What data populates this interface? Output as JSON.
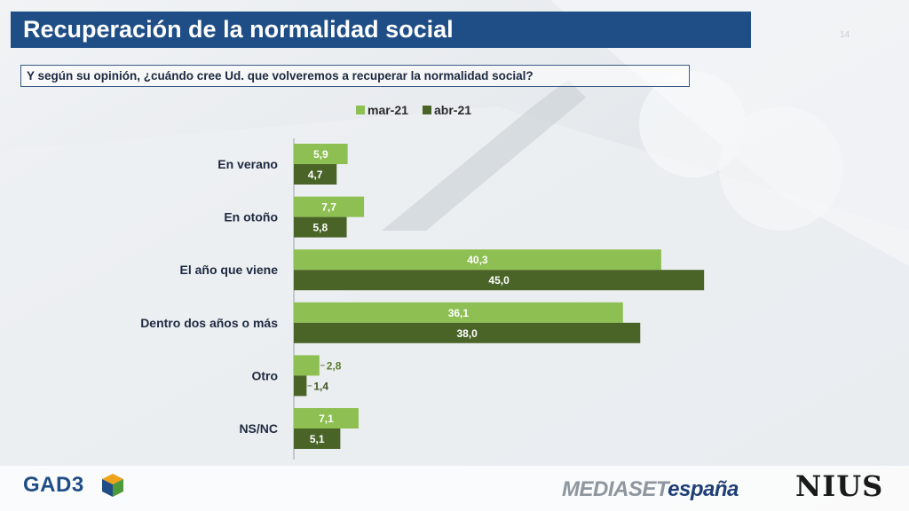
{
  "title": "Recuperación de la normalidad social",
  "page_number": "14",
  "question": "Y según su opinión, ¿cuándo cree Ud. que volveremos a recuperar la normalidad social?",
  "colors": {
    "title_bg": "#1f4e86",
    "series_mar": "#8dbf52",
    "series_abr": "#4a6428"
  },
  "logos": {
    "gad3": "GAD3",
    "mediaset_a": "MEDIASET",
    "mediaset_b": "españa",
    "nius": "NIUS"
  },
  "chart_data": {
    "type": "bar",
    "orientation": "horizontal",
    "categories": [
      "En verano",
      "En otoño",
      "El año que viene",
      "Dentro dos años o más",
      "Otro",
      "NS/NC"
    ],
    "series": [
      {
        "name": "mar-21",
        "values": [
          5.9,
          7.7,
          40.3,
          36.1,
          2.8,
          7.1
        ],
        "labels": [
          "5,9",
          "7,7",
          "40,3",
          "36,1",
          "2,8",
          "7,1"
        ]
      },
      {
        "name": "abr-21",
        "values": [
          4.7,
          5.8,
          45.0,
          38.0,
          1.4,
          5.1
        ],
        "labels": [
          "4,7",
          "5,8",
          "45,0",
          "38,0",
          "1,4",
          "5,1"
        ]
      }
    ],
    "legend_position": "top",
    "xlim": [
      0,
      45
    ],
    "grid": false
  }
}
